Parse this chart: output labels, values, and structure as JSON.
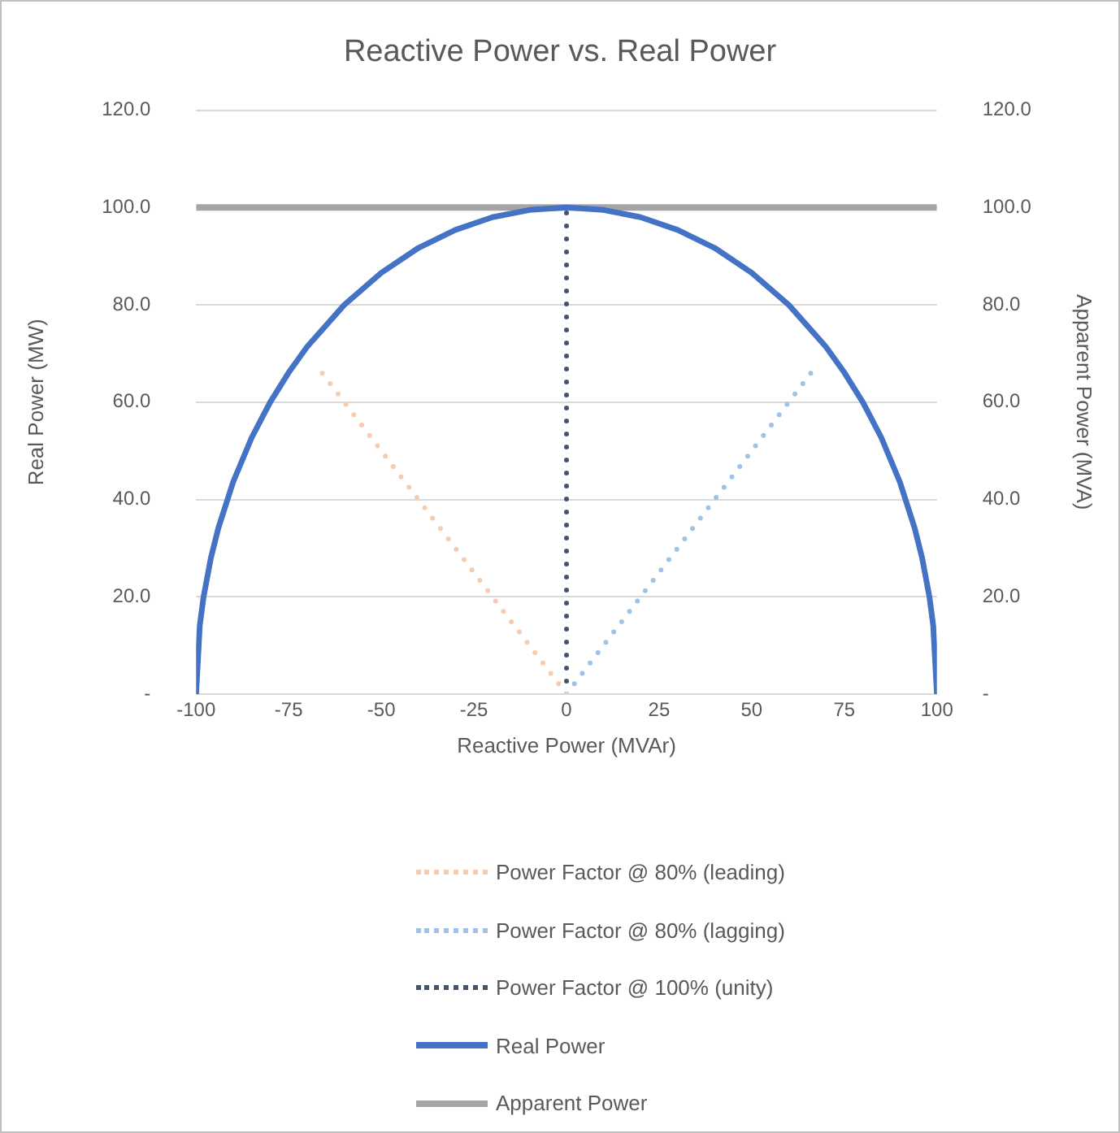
{
  "chart_data": {
    "type": "line",
    "title": "Reactive Power vs. Real Power",
    "xlabel": "Reactive Power (MVAr)",
    "ylabel": "Real Power (MW)",
    "y2label": "Apparent Power (MVA)",
    "xlim": [
      -100,
      100
    ],
    "xticks": [
      -100,
      -75,
      -50,
      -25,
      0,
      25,
      50,
      75,
      100
    ],
    "ylim": [
      0,
      120
    ],
    "yticks": [
      {
        "value": 0,
        "label": "-"
      },
      {
        "value": 20,
        "label": "20.0"
      },
      {
        "value": 40,
        "label": "40.0"
      },
      {
        "value": 60,
        "label": "60.0"
      },
      {
        "value": 80,
        "label": "80.0"
      },
      {
        "value": 100,
        "label": "100.0"
      },
      {
        "value": 120,
        "label": "120.0"
      }
    ],
    "y2lim": [
      0,
      120
    ],
    "y2ticks": [
      {
        "value": 0,
        "label": "-"
      },
      {
        "value": 20,
        "label": "20.0"
      },
      {
        "value": 40,
        "label": "40.0"
      },
      {
        "value": 60,
        "label": "60.0"
      },
      {
        "value": 80,
        "label": "80.0"
      },
      {
        "value": 100,
        "label": "100.0"
      },
      {
        "value": 120,
        "label": "120.0"
      }
    ],
    "grid": "y",
    "legend": "bottom",
    "marker": "none",
    "series": [
      {
        "name": "Power Factor @ 80% (leading)",
        "color": "#f8cbad",
        "line_style": "dotted",
        "x": [
          0,
          -67
        ],
        "values": [
          0,
          67
        ]
      },
      {
        "name": "Power Factor @ 80% (lagging)",
        "color": "#9dc3e6",
        "line_style": "dotted",
        "x": [
          0,
          67
        ],
        "values": [
          0,
          67
        ]
      },
      {
        "name": "Power Factor @ 100% (unity)",
        "color": "#44546a",
        "line_style": "dotted",
        "x": [
          0,
          0
        ],
        "values": [
          0,
          100
        ]
      },
      {
        "name": "Real Power",
        "color": "#4472c4",
        "line_style": "solid",
        "x": [
          -100,
          -99,
          -98,
          -96,
          -94,
          -90,
          -85,
          -80,
          -75,
          -70,
          -60,
          -50,
          -40,
          -30,
          -20,
          -10,
          0,
          10,
          20,
          30,
          40,
          50,
          60,
          70,
          75,
          80,
          85,
          90,
          94,
          96,
          98,
          99,
          100
        ],
        "values": [
          0,
          14.1,
          19.9,
          28,
          34.1,
          43.6,
          52.7,
          60,
          66.1,
          71.4,
          80,
          86.6,
          91.7,
          95.4,
          98,
          99.5,
          100,
          99.5,
          98,
          95.4,
          91.7,
          86.6,
          80,
          71.4,
          66.1,
          60,
          52.7,
          43.6,
          34.1,
          28,
          19.9,
          14.1,
          0
        ]
      },
      {
        "name": "Apparent Power",
        "color": "#a5a5a5",
        "line_style": "solid",
        "x": [
          -100,
          100
        ],
        "values": [
          100,
          100
        ]
      }
    ]
  }
}
